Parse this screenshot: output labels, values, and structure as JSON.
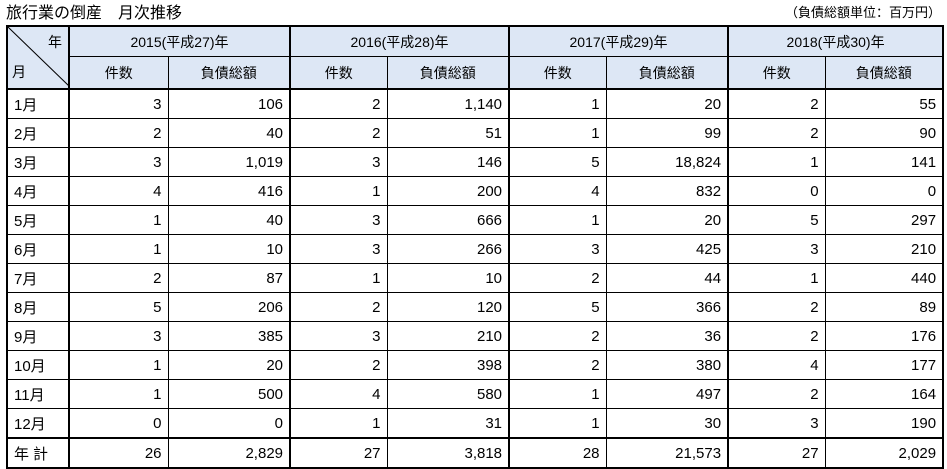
{
  "title": "旅行業の倒産　月次推移",
  "unit_note": "（負債総額単位：百万円）",
  "corner": {
    "year_label": "年",
    "month_label": "月"
  },
  "subheaders": {
    "count": "件数",
    "debt": "負債総額"
  },
  "years": [
    "2015(平成27)年",
    "2016(平成28)年",
    "2017(平成29)年",
    "2018(平成30)年"
  ],
  "rows": [
    {
      "month": "1月",
      "cells": [
        "3",
        "106",
        "2",
        "1,140",
        "1",
        "20",
        "2",
        "55"
      ]
    },
    {
      "month": "2月",
      "cells": [
        "2",
        "40",
        "2",
        "51",
        "1",
        "99",
        "2",
        "90"
      ]
    },
    {
      "month": "3月",
      "cells": [
        "3",
        "1,019",
        "3",
        "146",
        "5",
        "18,824",
        "1",
        "141"
      ]
    },
    {
      "month": "4月",
      "cells": [
        "4",
        "416",
        "1",
        "200",
        "4",
        "832",
        "0",
        "0"
      ]
    },
    {
      "month": "5月",
      "cells": [
        "1",
        "40",
        "3",
        "666",
        "1",
        "20",
        "5",
        "297"
      ]
    },
    {
      "month": "6月",
      "cells": [
        "1",
        "10",
        "3",
        "266",
        "3",
        "425",
        "3",
        "210"
      ]
    },
    {
      "month": "7月",
      "cells": [
        "2",
        "87",
        "1",
        "10",
        "2",
        "44",
        "1",
        "440"
      ]
    },
    {
      "month": "8月",
      "cells": [
        "5",
        "206",
        "2",
        "120",
        "5",
        "366",
        "2",
        "89"
      ]
    },
    {
      "month": "9月",
      "cells": [
        "3",
        "385",
        "3",
        "210",
        "2",
        "36",
        "2",
        "176"
      ]
    },
    {
      "month": "10月",
      "cells": [
        "1",
        "20",
        "2",
        "398",
        "2",
        "380",
        "4",
        "177"
      ]
    },
    {
      "month": "11月",
      "cells": [
        "1",
        "500",
        "4",
        "580",
        "1",
        "497",
        "2",
        "164"
      ]
    },
    {
      "month": "12月",
      "cells": [
        "0",
        "0",
        "1",
        "31",
        "1",
        "30",
        "3",
        "190"
      ]
    }
  ],
  "total": {
    "label": "年計",
    "cells": [
      "26",
      "2,829",
      "27",
      "3,818",
      "28",
      "21,573",
      "27",
      "2,029"
    ]
  },
  "colors": {
    "header_bg": "#dde7f5",
    "border": "#000000"
  }
}
